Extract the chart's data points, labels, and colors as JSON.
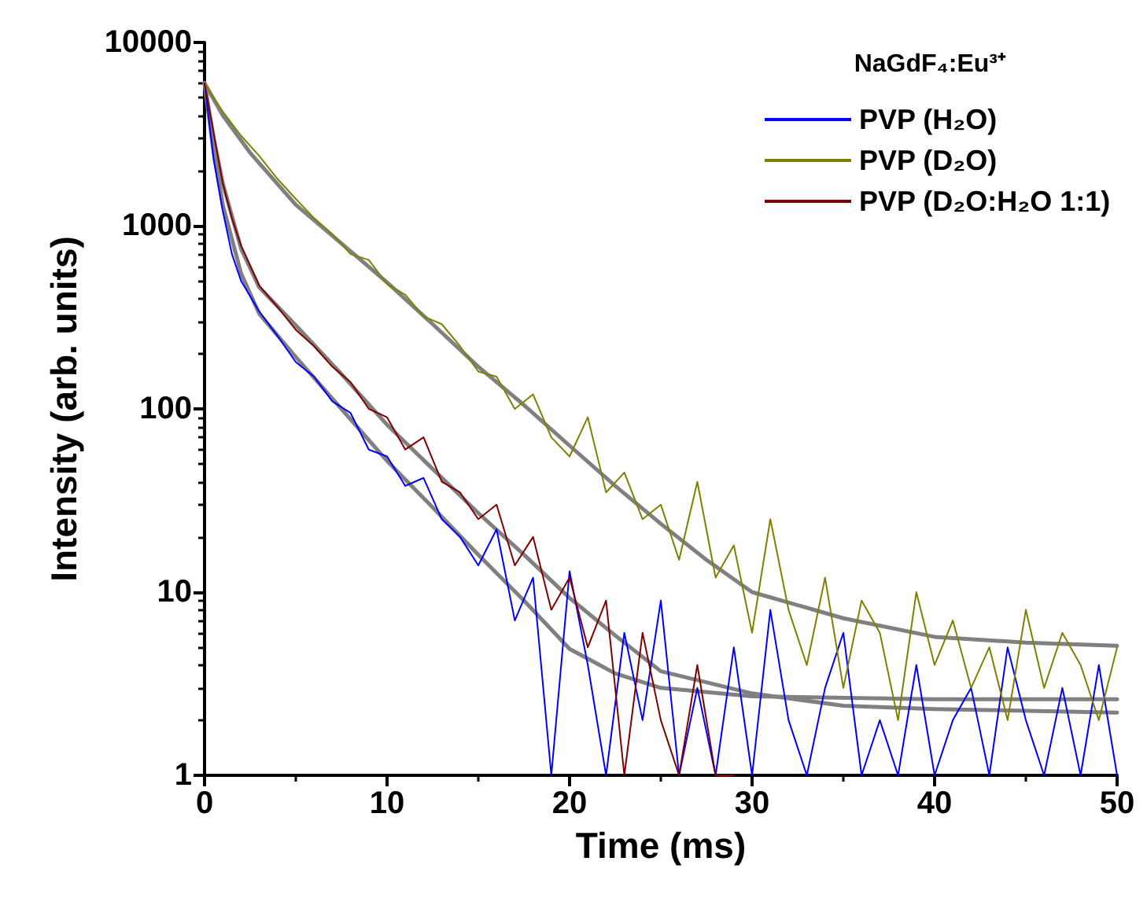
{
  "chart_data": {
    "type": "line",
    "xlabel": "Time (ms)",
    "ylabel": "Intensity (arb. units)",
    "legend_title": "NaGdF₄:Eu³⁺",
    "log": "y",
    "xlim": [
      0,
      50
    ],
    "xticks": [
      0,
      10,
      20,
      30,
      40,
      50
    ],
    "ylim": [
      1,
      10000
    ],
    "yticks": [
      1,
      10,
      100,
      1000,
      10000
    ],
    "grid": false,
    "legend": "top right",
    "marker": "none",
    "line_style": "solid",
    "series": [
      {
        "name": "PVP (H₂O)",
        "color": "#0000ff",
        "x": [
          0,
          0.5,
          1,
          1.5,
          2,
          3,
          4,
          5,
          6,
          7,
          8,
          9,
          10,
          11,
          12,
          13,
          14,
          15,
          16,
          17,
          18,
          19,
          20,
          21,
          22,
          23,
          24,
          25,
          26,
          27,
          28,
          29,
          30,
          31,
          32,
          33,
          34,
          35,
          36,
          37,
          38,
          39,
          40,
          41,
          42,
          43,
          44,
          45,
          46,
          47,
          48,
          49,
          50
        ],
        "values": [
          6000,
          2300,
          1200,
          700,
          500,
          340,
          250,
          180,
          150,
          110,
          95,
          60,
          55,
          38,
          42,
          25,
          20,
          14,
          22,
          7,
          12,
          1,
          13,
          4,
          1,
          6,
          2,
          9,
          1,
          3,
          1,
          5,
          1,
          8,
          2,
          1,
          3,
          6,
          1,
          2,
          1,
          4,
          1,
          2,
          3,
          1,
          5,
          2,
          1,
          3,
          1,
          4,
          1
        ]
      },
      {
        "name": "PVP (D₂O)",
        "color": "#808000",
        "x": [
          0,
          0.5,
          1,
          1.5,
          2,
          3,
          4,
          5,
          6,
          7,
          8,
          9,
          10,
          11,
          12,
          13,
          14,
          15,
          16,
          17,
          18,
          19,
          20,
          21,
          22,
          23,
          24,
          25,
          26,
          27,
          28,
          29,
          30,
          31,
          32,
          33,
          34,
          35,
          36,
          37,
          38,
          39,
          40,
          41,
          42,
          43,
          44,
          45,
          46,
          47,
          48,
          49,
          50
        ],
        "values": [
          6000,
          5000,
          4200,
          3600,
          3100,
          2400,
          1800,
          1400,
          1100,
          900,
          700,
          650,
          480,
          420,
          320,
          290,
          220,
          160,
          150,
          100,
          120,
          70,
          55,
          90,
          35,
          45,
          25,
          30,
          15,
          40,
          12,
          18,
          6,
          25,
          8,
          4,
          12,
          3,
          9,
          6,
          2,
          10,
          4,
          7,
          3,
          5,
          2,
          8,
          3,
          6,
          4,
          2,
          5
        ]
      },
      {
        "name": "PVP (D₂O:H₂O 1:1)",
        "color": "#800000",
        "x": [
          0,
          0.5,
          1,
          1.5,
          2,
          3,
          4,
          5,
          6,
          7,
          8,
          9,
          10,
          11,
          12,
          13,
          14,
          15,
          16,
          17,
          18,
          19,
          20,
          21,
          22,
          23,
          24,
          25,
          26,
          27,
          28,
          29
        ],
        "values": [
          6000,
          3200,
          1700,
          1100,
          780,
          470,
          360,
          270,
          220,
          170,
          140,
          100,
          90,
          60,
          70,
          40,
          35,
          25,
          30,
          14,
          20,
          8,
          12,
          5,
          9,
          1,
          6,
          2,
          1,
          4,
          1,
          1
        ]
      },
      {
        "color": "#808080",
        "x": [
          0,
          0.5,
          1,
          2,
          3,
          5,
          7.5,
          10,
          12.5,
          15,
          17.5,
          20,
          22.5,
          25,
          30,
          40,
          50
        ],
        "values": [
          6000,
          2500,
          1300,
          550,
          330,
          192,
          100,
          52,
          29,
          16,
          9,
          4.9,
          3.6,
          3,
          2.7,
          2.6,
          2.6
        ]
      },
      {
        "color": "#808080",
        "x": [
          0,
          1,
          2.5,
          5,
          7.5,
          10,
          12.5,
          15,
          17.5,
          20,
          22.5,
          25,
          27.5,
          30,
          35,
          40,
          45,
          50
        ],
        "values": [
          6000,
          4000,
          2500,
          1300,
          800,
          490,
          290,
          170,
          105,
          63,
          38,
          23.6,
          15,
          10,
          7.2,
          5.7,
          5.3,
          5.1
        ]
      },
      {
        "color": "#808080",
        "x": [
          0,
          0.5,
          1,
          2,
          3,
          5,
          7.5,
          10,
          12.5,
          15,
          17.5,
          20,
          22.5,
          25,
          30,
          35,
          40,
          50
        ],
        "values": [
          6000,
          3000,
          1700,
          750,
          460,
          286,
          155,
          82,
          47,
          27,
          16,
          9.3,
          5.8,
          3.7,
          2.8,
          2.4,
          2.3,
          2.2
        ]
      }
    ]
  }
}
